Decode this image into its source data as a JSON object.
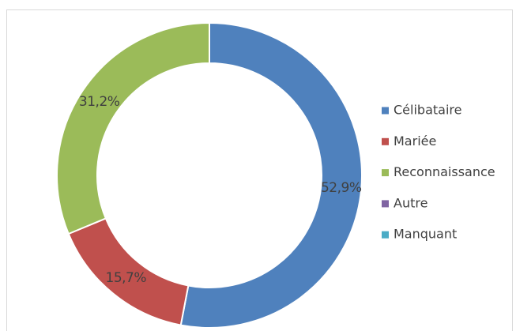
{
  "chart_data": {
    "type": "donut",
    "categories": [
      "Célibataire",
      "Mariée",
      "Reconnaissance",
      "Autre",
      "Manquant"
    ],
    "values": [
      52.9,
      15.7,
      31.2,
      0,
      0
    ],
    "value_labels": [
      "52,9%",
      "15,7%",
      "31,2%",
      null,
      null
    ],
    "colors": [
      "#4f81bd",
      "#c0504d",
      "#9bbb59",
      "#8064a2",
      "#4bacc6"
    ],
    "legend": "right"
  }
}
